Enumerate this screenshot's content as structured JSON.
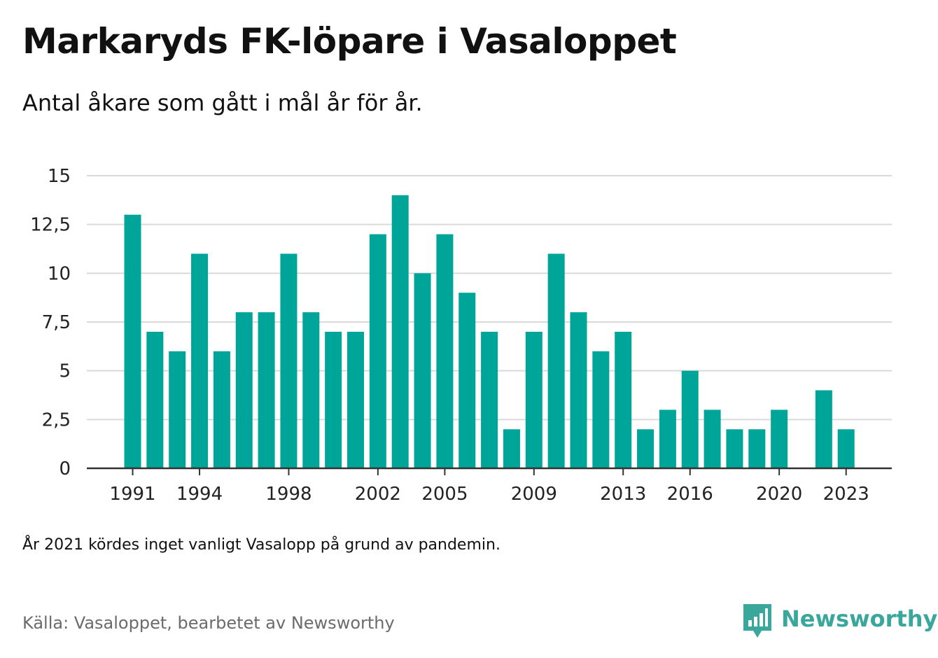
{
  "title": "Markaryds FK-löpare i Vasaloppet",
  "subtitle": "Antal åkare som gått i mål år för år.",
  "note": "År 2021 kördes inget vanligt Vasalopp på grund av pandemin.",
  "source": "Källa: Vasaloppet, bearbetet av Newsworthy",
  "brand": {
    "name": "Newsworthy",
    "logo_icon": "newsworthy-bar-chart-icon"
  },
  "colors": {
    "bar": "#00a59a",
    "grid": "#d9d9d9",
    "axis": "#333333",
    "brand": "#3aa79c",
    "source_text": "#6b6b6b"
  },
  "chart_data": {
    "type": "bar",
    "title": "Markaryds FK-löpare i Vasaloppet",
    "subtitle": "Antal åkare som gått i mål år för år.",
    "x": [
      1991,
      1992,
      1993,
      1994,
      1995,
      1996,
      1997,
      1998,
      1999,
      2000,
      2001,
      2002,
      2003,
      2004,
      2005,
      2006,
      2007,
      2008,
      2009,
      2010,
      2011,
      2012,
      2013,
      2014,
      2015,
      2016,
      2017,
      2018,
      2019,
      2020,
      2021,
      2022,
      2023
    ],
    "values": [
      13,
      7,
      6,
      11,
      6,
      8,
      8,
      11,
      8,
      7,
      7,
      12,
      14,
      10,
      12,
      9,
      7,
      2,
      7,
      11,
      8,
      6,
      7,
      2,
      3,
      5,
      3,
      2,
      2,
      3,
      null,
      4,
      2
    ],
    "x_tick_labels": [
      "1991",
      "1994",
      "1998",
      "2002",
      "2005",
      "2009",
      "2013",
      "2016",
      "2020",
      "2023"
    ],
    "y_ticks": [
      0,
      2.5,
      5,
      7.5,
      10,
      12.5,
      15
    ],
    "y_tick_labels": [
      "0",
      "2,5",
      "5",
      "7,5",
      "10",
      "12,5",
      "15"
    ],
    "ylim": [
      0,
      15
    ],
    "xlabel": "",
    "ylabel": "",
    "grid": true,
    "legend": "none"
  }
}
